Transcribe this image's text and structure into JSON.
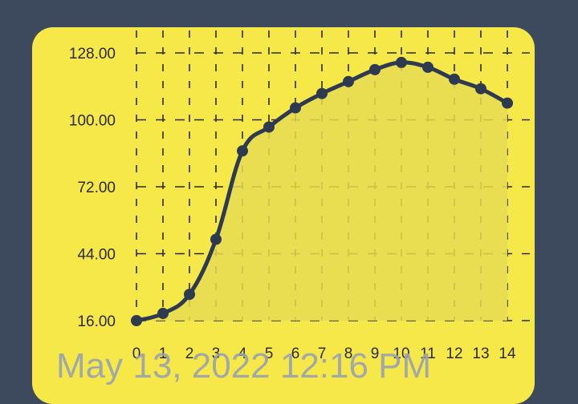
{
  "timestamp": "May 13, 2022 12:16 PM",
  "colors": {
    "background": "#3d4a5e",
    "card": "#f7e84a",
    "line": "#2e3a50",
    "fill": "#e6db52",
    "grid": "#2b2b2b"
  },
  "chart_data": {
    "type": "line",
    "x": [
      0,
      1,
      2,
      3,
      4,
      5,
      6,
      7,
      8,
      9,
      10,
      11,
      12,
      13,
      14
    ],
    "series": [
      {
        "values": [
          16,
          19,
          27,
          50,
          87,
          97,
          105,
          111,
          116,
          121,
          124,
          122,
          117,
          113,
          107
        ]
      }
    ],
    "y_ticks": [
      "16.00",
      "44.00",
      "72.00",
      "100.00",
      "128.00"
    ],
    "x_ticks": [
      "0",
      "1",
      "2",
      "3",
      "4",
      "5",
      "6",
      "7",
      "8",
      "9",
      "10",
      "11",
      "12",
      "13",
      "14"
    ],
    "ylim": [
      16,
      128
    ],
    "xlim": [
      0,
      14
    ],
    "grid": "dashed",
    "area_fill": true,
    "markers": true
  }
}
